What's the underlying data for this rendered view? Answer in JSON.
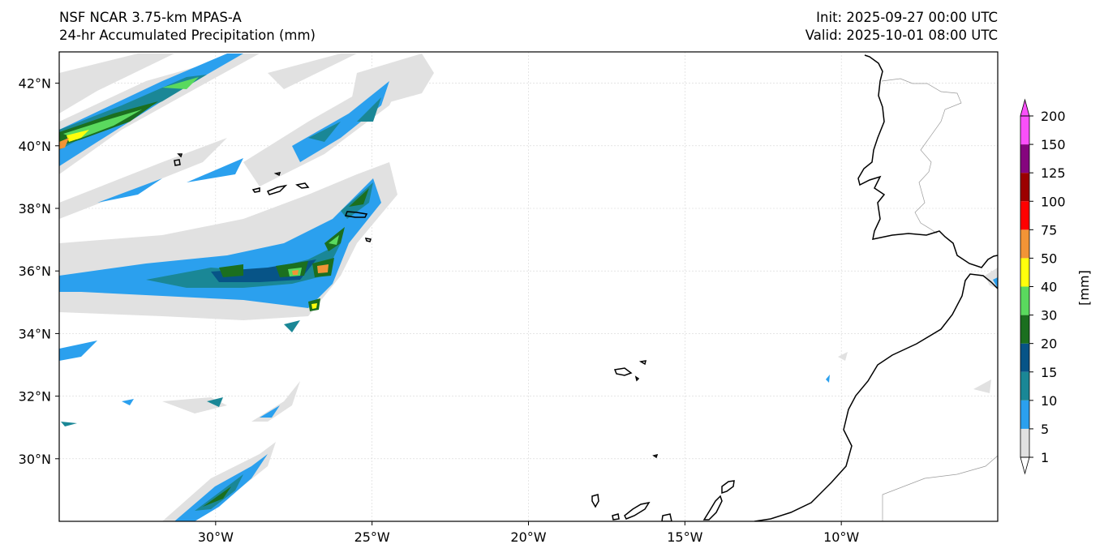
{
  "header": {
    "left_line1": "NSF NCAR 3.75-km MPAS-A",
    "left_line2": "24-hr Accumulated Precipitation (mm)",
    "right_line1": "Init: 2025-09-27 00:00 UTC",
    "right_line2": "Valid: 2025-10-01 08:00 UTC"
  },
  "map": {
    "lon_range": [
      -35,
      -5
    ],
    "lat_range": [
      28,
      43
    ],
    "lon_ticks": [
      {
        "value": -30,
        "label": "30°W"
      },
      {
        "value": -25,
        "label": "25°W"
      },
      {
        "value": -20,
        "label": "20°W"
      },
      {
        "value": -15,
        "label": "15°W"
      },
      {
        "value": -10,
        "label": "10°W"
      }
    ],
    "lat_ticks": [
      {
        "value": 42,
        "label": "42°N"
      },
      {
        "value": 40,
        "label": "40°N"
      },
      {
        "value": 38,
        "label": "38°N"
      },
      {
        "value": 36,
        "label": "36°N"
      },
      {
        "value": 34,
        "label": "34°N"
      },
      {
        "value": 32,
        "label": "32°N"
      },
      {
        "value": 30,
        "label": "30°N"
      }
    ]
  },
  "colorbar": {
    "unit_label": "[mm]",
    "levels": [
      "1",
      "5",
      "10",
      "15",
      "20",
      "30",
      "40",
      "50",
      "75",
      "100",
      "125",
      "150",
      "200"
    ],
    "colors": [
      "#e1e1e1",
      "#2ba0ee",
      "#1a8796",
      "#075487",
      "#1b6f1f",
      "#5ad95e",
      "#ffff0c",
      "#f29436",
      "#ff0000",
      "#9c0000",
      "#85057e",
      "#fa50fa"
    ],
    "extend": "both"
  },
  "precip_colors": {
    "light": "#e1e1e1",
    "blue": "#2ba0ee",
    "teal": "#1a8796",
    "dark_blue": "#075487",
    "dark_green": "#1b6f1f",
    "green": "#5ad95e",
    "yellow": "#ffff0c",
    "orange": "#f29436"
  }
}
